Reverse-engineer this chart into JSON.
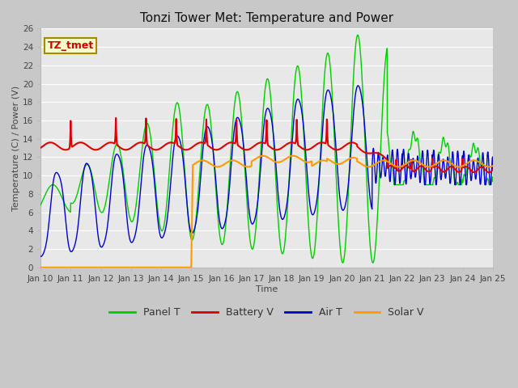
{
  "title": "Tonzi Tower Met: Temperature and Power",
  "xlabel": "Time",
  "ylabel": "Temperature (C) / Power (V)",
  "ylim": [
    0,
    26
  ],
  "ytick_vals": [
    0,
    2,
    4,
    6,
    8,
    10,
    12,
    14,
    16,
    18,
    20,
    22,
    24,
    26
  ],
  "xtick_labels": [
    "Jan 10",
    "Jan 11",
    "Jan 12",
    "Jan 13",
    "Jan 14",
    "Jan 15",
    "Jan 16",
    "Jan 17",
    "Jan 18",
    "Jan 19",
    "Jan 20",
    "Jan 21",
    "Jan 22",
    "Jan 23",
    "Jan 24",
    "Jan 25"
  ],
  "plot_bg_color": "#e8e8e8",
  "fig_bg_color": "#c8c8c8",
  "grid_color": "#ffffff",
  "label_box_text": "TZ_tmet",
  "label_box_facecolor": "#ffffcc",
  "label_box_edgecolor": "#aa8800",
  "label_text_color": "#cc0000",
  "series": {
    "panel_t": {
      "color": "#00cc00",
      "label": "Panel T",
      "lw": 1.0
    },
    "battery_v": {
      "color": "#dd0000",
      "label": "Battery V",
      "lw": 1.5
    },
    "air_t": {
      "color": "#0000cc",
      "label": "Air T",
      "lw": 1.0
    },
    "solar_v": {
      "color": "#ff9900",
      "label": "Solar V",
      "lw": 1.5
    }
  },
  "title_fontsize": 11,
  "axis_label_fontsize": 8,
  "tick_fontsize": 7.5,
  "legend_fontsize": 9
}
